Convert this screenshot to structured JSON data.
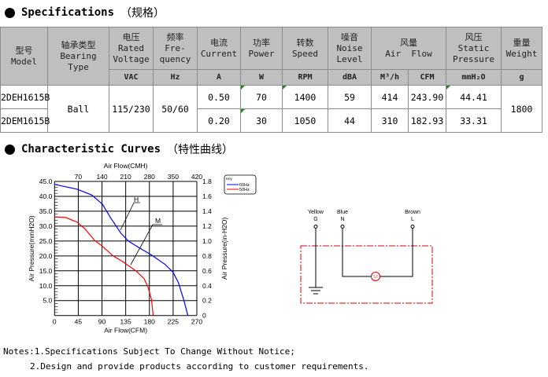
{
  "specs": {
    "title": "Specifications",
    "title_cn": "（规格）",
    "headers": [
      {
        "cn": "型号",
        "en": "Model"
      },
      {
        "cn": "轴承类型",
        "en": "Bearing Type"
      },
      {
        "cn": "电压",
        "en": "Rated Voltage"
      },
      {
        "cn": "频率",
        "en": "Fre-quency"
      },
      {
        "cn": "电流",
        "en": "Current"
      },
      {
        "cn": "功率",
        "en": "Power"
      },
      {
        "cn": "转数",
        "en": "Speed"
      },
      {
        "cn": "噪音",
        "en": "Noise Level"
      },
      {
        "cn": "风量",
        "en": "Air  Flow"
      },
      {
        "cn": "风压",
        "en": "Static Pressure"
      },
      {
        "cn": "重量",
        "en": "Weight"
      }
    ],
    "units": [
      "VAC",
      "Hz",
      "A",
      "W",
      "RPM",
      "dBA",
      "M³/h",
      "CFM",
      "mmH₂O",
      "g"
    ],
    "shared": {
      "bearing": "Ball",
      "voltage": "115/230",
      "frequency": "50/60",
      "weight": "1800"
    },
    "rows": [
      {
        "model": "2DEH1615B",
        "current": "0.50",
        "power": "70",
        "speed": "1400",
        "noise": "59",
        "m3h": "414",
        "cfm": "243.90",
        "pressure": "44.41"
      },
      {
        "model": "2DEM1615B",
        "current": "0.20",
        "power": "30",
        "speed": "1050",
        "noise": "44",
        "m3h": "310",
        "cfm": "182.93",
        "pressure": "33.31"
      }
    ]
  },
  "curves": {
    "title": "Characteristic Curves",
    "title_cn": "（特性曲线）"
  },
  "chart_data": {
    "type": "line",
    "xlabel": "Air Flow(CFM)",
    "x2label": "Air Flow(CMH)",
    "ylabel": "Air Pressure(mmH2O)",
    "y2label": "Air Pressure(in-H2O)",
    "xlim": [
      0,
      270
    ],
    "ylim": [
      0,
      45
    ],
    "grid": true,
    "x_ticks": [
      "0",
      "45",
      "90",
      "135",
      "180",
      "225",
      "270"
    ],
    "x2_ticks": [
      "70",
      "140",
      "210",
      "280",
      "350",
      "420"
    ],
    "y_ticks": [
      "5.0",
      "10.0",
      "15.0",
      "20.0",
      "25.0",
      "30.0",
      "35.0",
      "40.0",
      "45.0"
    ],
    "y2_ticks": [
      "0",
      "0.2",
      "0.4",
      "0.6",
      "0.8",
      "1.0",
      "1.2",
      "1.4",
      "1.6",
      "1.8"
    ],
    "legend": {
      "title": "Key",
      "placement": "top-right outside",
      "entries": [
        {
          "name": "60Hz",
          "color": "#0000ff"
        },
        {
          "name": "50Hz",
          "color": "#ff0000"
        }
      ]
    },
    "annotations": [
      "H",
      "M"
    ],
    "series": [
      {
        "name": "60Hz",
        "color": "#0000ff",
        "x": [
          0,
          43,
          71,
          91,
          106,
          126,
          140,
          160,
          185,
          210,
          225,
          235,
          245,
          253
        ],
        "y": [
          44,
          42.4,
          40.4,
          37.3,
          32.9,
          27.6,
          25,
          22.8,
          20.2,
          17.1,
          14.5,
          11,
          5.3,
          0
        ]
      },
      {
        "name": "50Hz",
        "color": "#ff0000",
        "x": [
          0,
          21,
          43,
          58,
          76,
          91,
          111,
          130,
          155,
          170,
          178,
          184,
          187
        ],
        "y": [
          33.1,
          32.9,
          31.3,
          29,
          25.2,
          23.2,
          20,
          18,
          14.9,
          12.3,
          9.2,
          5.3,
          0
        ]
      }
    ]
  },
  "wiring": {
    "wires": [
      {
        "color": "Yellow",
        "terminal": "G"
      },
      {
        "color": "Blue",
        "terminal": "N"
      },
      {
        "color": "Brown",
        "terminal": "L"
      }
    ],
    "motor": "M"
  },
  "notes": [
    "Notes:1.Specifications Subject To Change Without Notice;",
    "2.Design and provide products according to customer requirements."
  ]
}
